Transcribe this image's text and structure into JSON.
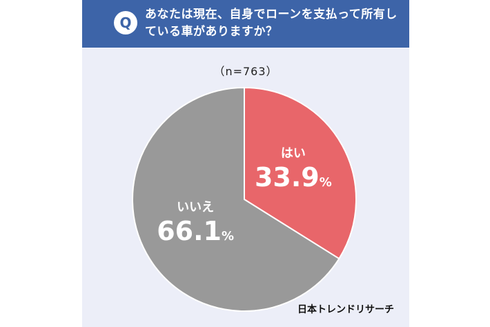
{
  "header": {
    "badge": "Q",
    "question": "あなたは現在、自身でローンを支払って所有している車がありますか？"
  },
  "sample_label": "（n=763）",
  "credit": "日本トレンドリサーチ",
  "colors": {
    "header": "#3d64a8",
    "yes": "#e8666a",
    "no": "#999999"
  },
  "chart_data": {
    "type": "pie",
    "title": "",
    "categories": [
      "はい",
      "いいえ"
    ],
    "values": [
      33.9,
      66.1
    ],
    "display_values": [
      "33.9",
      "66.1"
    ],
    "unit": "%"
  }
}
